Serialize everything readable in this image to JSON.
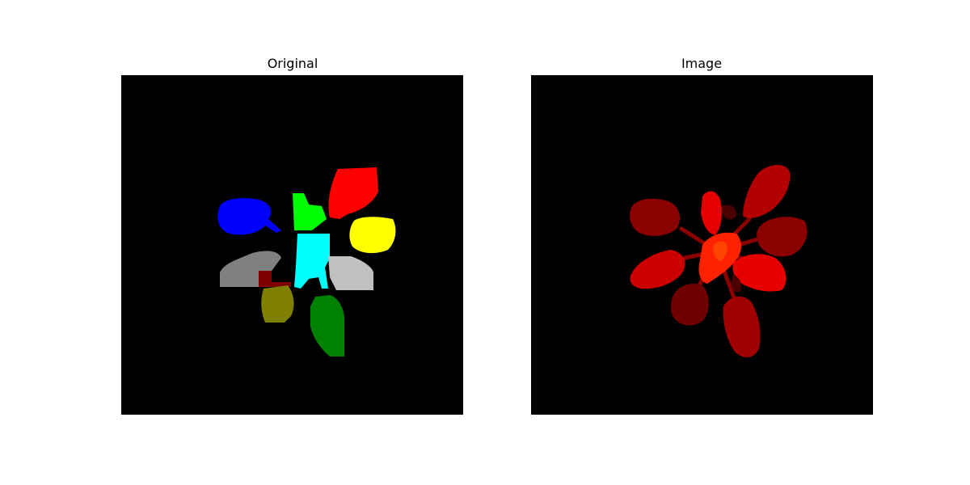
{
  "panels": [
    {
      "title": "Original",
      "segments": [
        {
          "name": "blue-leaf",
          "color": "#0000ff"
        },
        {
          "name": "green-leaf",
          "color": "#00ff00"
        },
        {
          "name": "red-leaf",
          "color": "#ff0000"
        },
        {
          "name": "yellow-leaf",
          "color": "#ffff00"
        },
        {
          "name": "cyan-leaf",
          "color": "#00ffff"
        },
        {
          "name": "gray-leaf",
          "color": "#808080"
        },
        {
          "name": "silver-leaf",
          "color": "#c0c0c0"
        },
        {
          "name": "maroon-leaf",
          "color": "#800000"
        },
        {
          "name": "olive-leaf",
          "color": "#808000"
        },
        {
          "name": "dark-green-leaf",
          "color": "#008000"
        }
      ]
    },
    {
      "title": "Image",
      "colors": [
        "#8b0000",
        "#a00000",
        "#b30000",
        "#cc0000",
        "#e60000",
        "#ff2200",
        "#ff4400",
        "#700000"
      ]
    }
  ]
}
